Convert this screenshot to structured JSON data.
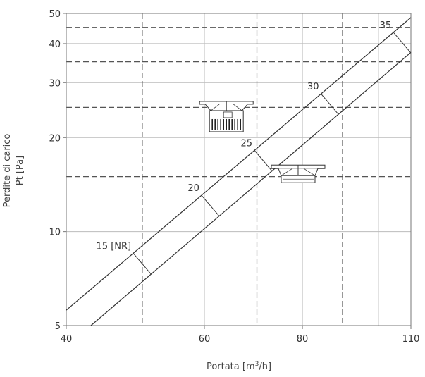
{
  "chart_data": {
    "type": "line",
    "title": "",
    "xlabel": "Portata [m3/h]",
    "xlabel_parts": {
      "base": "Portata [m",
      "sup": "3",
      "tail": "/h]"
    },
    "ylabel_line1": "Perdite di carico",
    "ylabel_line2": "Pt [Pa]",
    "xscale": "log",
    "yscale": "log",
    "xlim": [
      40,
      110
    ],
    "ylim": [
      5,
      50
    ],
    "xticks": [
      {
        "value": 40,
        "label": "40"
      },
      {
        "value": 60,
        "label": "60"
      },
      {
        "value": 80,
        "label": "80"
      },
      {
        "value": 110,
        "label": "110"
      }
    ],
    "yticks": [
      {
        "value": 5,
        "label": "5"
      },
      {
        "value": 10,
        "label": "10"
      },
      {
        "value": 20,
        "label": "20"
      },
      {
        "value": 30,
        "label": "30"
      },
      {
        "value": 40,
        "label": "40"
      },
      {
        "value": 50,
        "label": "50"
      }
    ],
    "grid_solid_x": [
      60,
      80,
      100
    ],
    "grid_solid_y": [
      10,
      20,
      30,
      40
    ],
    "grid_dashed_x": [
      50,
      70,
      90
    ],
    "grid_dashed_y": [
      15,
      25,
      35,
      45
    ],
    "series": [
      {
        "id": "upper",
        "points": [
          [
            40,
            5.6
          ],
          [
            110,
            48.5
          ]
        ]
      },
      {
        "id": "lower",
        "points": [
          [
            43,
            5
          ],
          [
            110,
            37.5
          ]
        ]
      }
    ],
    "nr_marks": [
      {
        "label": "15 [NR]",
        "x": 48.7,
        "y": 7.5
      },
      {
        "label": "20",
        "x": 59.5,
        "y": 11.8
      },
      {
        "label": "25",
        "x": 69.5,
        "y": 17.6
      },
      {
        "label": "30",
        "x": 84.5,
        "y": 27.3
      },
      {
        "label": "35",
        "x": 104.5,
        "y": 40.5
      }
    ],
    "line_color": "#333333",
    "grid_color": "#bbbbbb",
    "dash_color": "#555555"
  },
  "images": [
    {
      "name": "ceiling-vent-tall-icon",
      "x": 64,
      "y": 22
    },
    {
      "name": "ceiling-vent-flat-icon",
      "x": 79,
      "y": 14.8
    }
  ]
}
